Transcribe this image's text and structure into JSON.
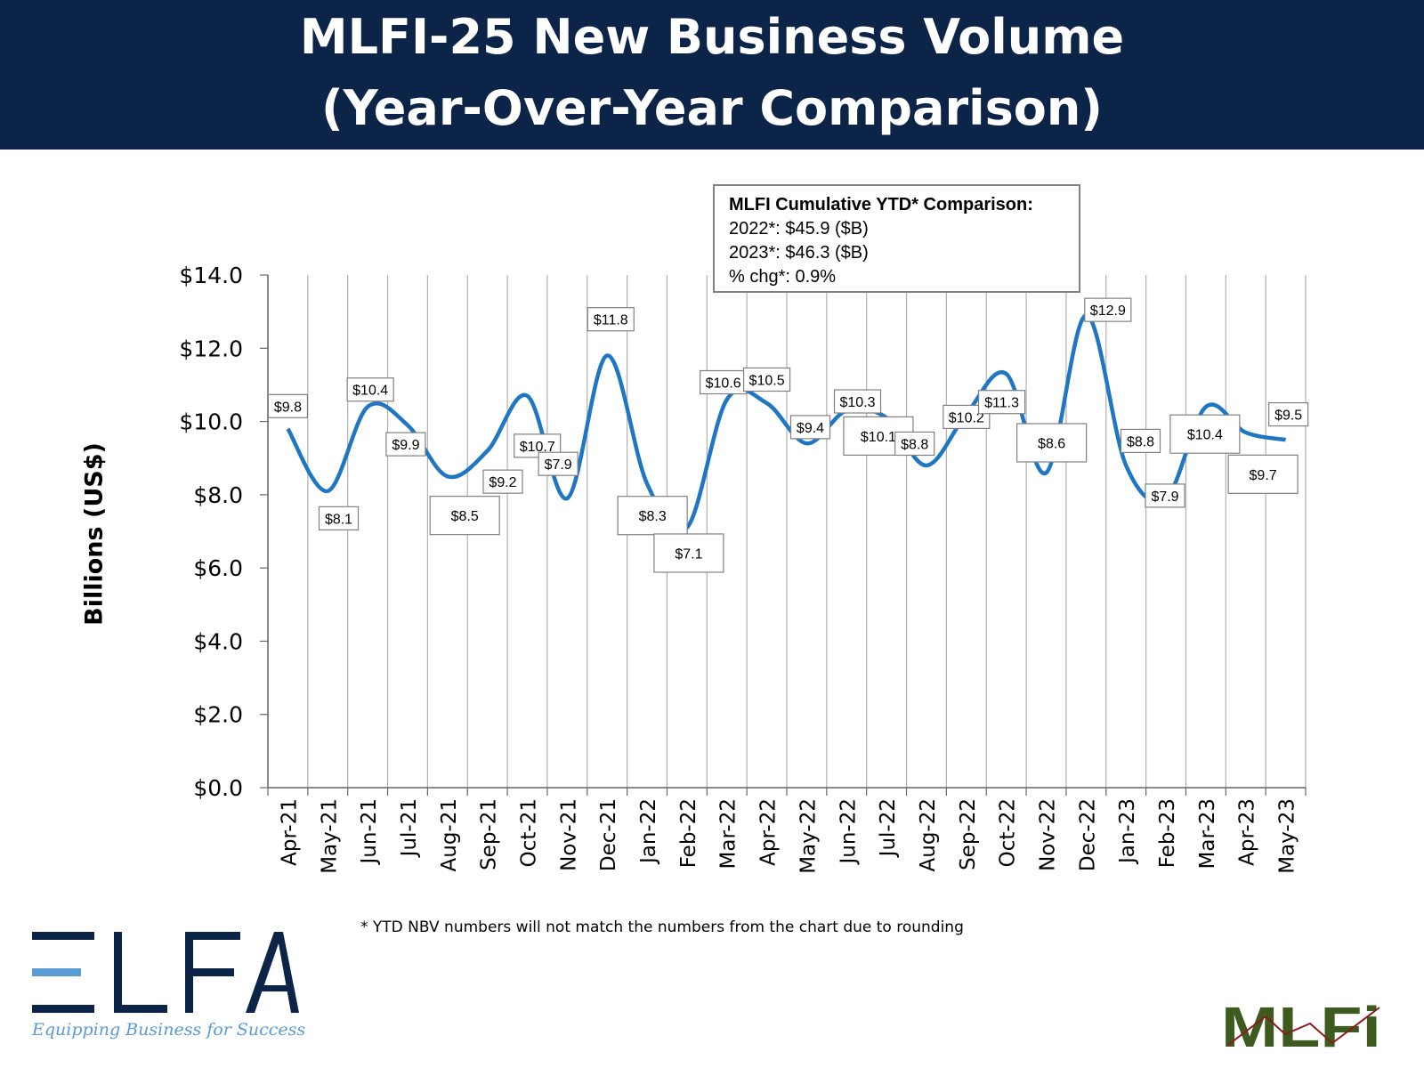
{
  "header": {
    "title_line1": "MLFI-25 New Business Volume",
    "title_line2": "(Year-Over-Year Comparison)"
  },
  "ytd_box": {
    "heading": "MLFI Cumulative YTD* Comparison:",
    "line_2022": "2022*: $45.9 ($B)",
    "line_2023": "2023*: $46.3 ($B)",
    "line_pct": "% chg*:  0.9%"
  },
  "footnote": "*  YTD NBV numbers will not match the numbers from the chart due to rounding",
  "logos": {
    "elfa": "ELFA",
    "elfa_tagline": "Equipping Business for Success",
    "mlfi": "MLFi"
  },
  "colors": {
    "banner": "#0c2447",
    "line": "#1f77c4",
    "grid": "#b0b0b0"
  },
  "chart_data": {
    "type": "line",
    "title": "MLFI-25 New Business Volume (Year-Over-Year Comparison)",
    "xlabel": "",
    "ylabel": "Billions (US$)",
    "ylim": [
      0,
      14
    ],
    "yticks": [
      "$0.0",
      "$2.0",
      "$4.0",
      "$6.0",
      "$8.0",
      "$10.0",
      "$12.0",
      "$14.0"
    ],
    "grid": "vertical",
    "smooth": true,
    "categories": [
      "Apr-21",
      "May-21",
      "Jun-21",
      "Jul-21",
      "Aug-21",
      "Sep-21",
      "Oct-21",
      "Nov-21",
      "Dec-21",
      "Jan-22",
      "Feb-22",
      "Mar-22",
      "Apr-22",
      "May-22",
      "Jun-22",
      "Jul-22",
      "Aug-22",
      "Sep-22",
      "Oct-22",
      "Nov-22",
      "Dec-22",
      "Jan-23",
      "Feb-23",
      "Mar-23",
      "Apr-23",
      "May-23"
    ],
    "values": [
      9.8,
      8.1,
      10.4,
      9.9,
      8.5,
      9.2,
      10.7,
      7.9,
      11.8,
      8.3,
      7.1,
      10.6,
      10.5,
      9.4,
      10.3,
      10.1,
      8.8,
      10.2,
      11.3,
      8.6,
      12.9,
      8.8,
      7.9,
      10.4,
      9.7,
      9.5
    ],
    "data_labels": [
      "$9.8",
      "$8.1",
      "$10.4",
      "$9.9",
      "$8.5",
      "$9.2",
      "$10.7",
      "$7.9",
      "$11.8",
      "$8.3",
      "$7.1",
      "$10.6",
      "$10.5",
      "$9.4",
      "$10.3",
      "$10.1",
      "$8.8",
      "$10.2",
      "$11.3",
      "$8.6",
      "$12.9",
      "$8.8",
      "$7.9",
      "$10.4",
      "$9.7",
      "$9.5"
    ]
  }
}
